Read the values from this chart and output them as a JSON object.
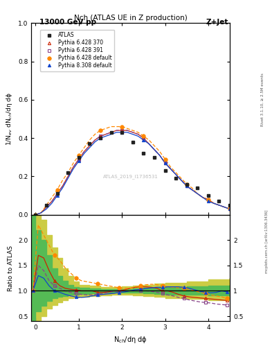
{
  "title": "Nch (ATLAS UE in Z production)",
  "header_left": "13000 GeV pp",
  "header_right": "Z+Jet",
  "watermark": "ATLAS_2019_I1736531",
  "rivet_text": "Rivet 3.1.10, ≥ 2.5M events",
  "mcplots_text": "mcplots.cern.ch [arXiv:1306.3436]",
  "ylabel_main": "1/N$_{ev}$ dN$_{ch}$/dη dϕ",
  "ylabel_ratio": "Ratio to ATLAS",
  "xlabel": "N$_{ch}$/dη dϕ",
  "xlim": [
    -0.1,
    4.5
  ],
  "ylim_main": [
    0.0,
    1.0
  ],
  "ylim_ratio": [
    0.4,
    2.5
  ],
  "atlas_x": [
    0.0,
    0.25,
    0.5,
    0.75,
    1.0,
    1.25,
    1.5,
    1.75,
    2.0,
    2.25,
    2.5,
    2.75,
    3.0,
    3.25,
    3.5,
    3.75,
    4.0,
    4.25,
    4.5
  ],
  "atlas_y": [
    0.0,
    0.05,
    0.11,
    0.22,
    0.3,
    0.37,
    0.4,
    0.43,
    0.43,
    0.38,
    0.32,
    0.3,
    0.23,
    0.19,
    0.16,
    0.14,
    0.1,
    0.07,
    0.05
  ],
  "py6_370_x": [
    0.0,
    0.125,
    0.25,
    0.375,
    0.5,
    0.625,
    0.75,
    0.875,
    1.0,
    1.125,
    1.25,
    1.375,
    1.5,
    1.625,
    1.75,
    1.875,
    2.0,
    2.125,
    2.25,
    2.375,
    2.5,
    2.625,
    2.75,
    2.875,
    3.0,
    3.125,
    3.25,
    3.375,
    3.5,
    3.625,
    3.75,
    3.875,
    4.0,
    4.125,
    4.25,
    4.375,
    4.5
  ],
  "py6_370_y": [
    0.0,
    0.01,
    0.04,
    0.07,
    0.11,
    0.15,
    0.2,
    0.25,
    0.29,
    0.33,
    0.36,
    0.39,
    0.41,
    0.42,
    0.43,
    0.44,
    0.44,
    0.44,
    0.43,
    0.42,
    0.4,
    0.37,
    0.34,
    0.31,
    0.27,
    0.24,
    0.21,
    0.18,
    0.15,
    0.13,
    0.11,
    0.09,
    0.08,
    0.06,
    0.05,
    0.04,
    0.03
  ],
  "py6_391_x": [
    0.0,
    0.125,
    0.25,
    0.375,
    0.5,
    0.625,
    0.75,
    0.875,
    1.0,
    1.125,
    1.25,
    1.375,
    1.5,
    1.625,
    1.75,
    1.875,
    2.0,
    2.125,
    2.25,
    2.375,
    2.5,
    2.625,
    2.75,
    2.875,
    3.0,
    3.125,
    3.25,
    3.375,
    3.5,
    3.625,
    3.75,
    3.875,
    4.0,
    4.125,
    4.25,
    4.375,
    4.5
  ],
  "py6_391_y": [
    0.0,
    0.01,
    0.04,
    0.07,
    0.11,
    0.15,
    0.2,
    0.25,
    0.29,
    0.33,
    0.36,
    0.39,
    0.41,
    0.42,
    0.43,
    0.44,
    0.44,
    0.44,
    0.43,
    0.42,
    0.4,
    0.37,
    0.34,
    0.31,
    0.27,
    0.24,
    0.21,
    0.18,
    0.15,
    0.13,
    0.11,
    0.09,
    0.08,
    0.06,
    0.05,
    0.04,
    0.03
  ],
  "py6_def_x": [
    0.0,
    0.125,
    0.25,
    0.375,
    0.5,
    0.625,
    0.75,
    0.875,
    1.0,
    1.125,
    1.25,
    1.375,
    1.5,
    1.625,
    1.75,
    1.875,
    2.0,
    2.125,
    2.25,
    2.375,
    2.5,
    2.625,
    2.75,
    2.875,
    3.0,
    3.125,
    3.25,
    3.375,
    3.5,
    3.625,
    3.75,
    3.875,
    4.0,
    4.125,
    4.25,
    4.375,
    4.5
  ],
  "py6_def_y": [
    0.0,
    0.01,
    0.05,
    0.09,
    0.13,
    0.18,
    0.22,
    0.27,
    0.31,
    0.35,
    0.39,
    0.42,
    0.44,
    0.45,
    0.46,
    0.46,
    0.46,
    0.45,
    0.44,
    0.43,
    0.41,
    0.39,
    0.36,
    0.33,
    0.29,
    0.25,
    0.22,
    0.19,
    0.16,
    0.14,
    0.11,
    0.09,
    0.08,
    0.06,
    0.05,
    0.04,
    0.03
  ],
  "py8_def_x": [
    0.0,
    0.125,
    0.25,
    0.375,
    0.5,
    0.625,
    0.75,
    0.875,
    1.0,
    1.125,
    1.25,
    1.375,
    1.5,
    1.625,
    1.75,
    1.875,
    2.0,
    2.125,
    2.25,
    2.375,
    2.5,
    2.625,
    2.75,
    2.875,
    3.0,
    3.125,
    3.25,
    3.375,
    3.5,
    3.625,
    3.75,
    3.875,
    4.0,
    4.125,
    4.25,
    4.375,
    4.5
  ],
  "py8_def_y": [
    0.0,
    0.01,
    0.03,
    0.06,
    0.1,
    0.14,
    0.19,
    0.24,
    0.28,
    0.32,
    0.35,
    0.38,
    0.4,
    0.41,
    0.42,
    0.43,
    0.43,
    0.43,
    0.42,
    0.41,
    0.39,
    0.37,
    0.34,
    0.31,
    0.27,
    0.24,
    0.21,
    0.18,
    0.15,
    0.13,
    0.11,
    0.09,
    0.07,
    0.06,
    0.05,
    0.04,
    0.03
  ],
  "ratio_x": [
    -0.0625,
    0.0625,
    0.1875,
    0.3125,
    0.4375,
    0.5625,
    0.6875,
    0.8125,
    0.9375,
    1.0625,
    1.1875,
    1.3125,
    1.4375,
    1.5625,
    1.6875,
    1.8125,
    1.9375,
    2.0625,
    2.1875,
    2.3125,
    2.4375,
    2.5625,
    2.6875,
    2.8125,
    2.9375,
    3.0625,
    3.1875,
    3.3125,
    3.4375,
    3.5625,
    3.6875,
    3.8125,
    3.9375,
    4.0625,
    4.1875,
    4.3125,
    4.4375
  ],
  "ratio_py6_370": [
    1.0,
    1.7,
    1.65,
    1.4,
    1.2,
    1.1,
    1.05,
    1.03,
    1.02,
    1.0,
    1.0,
    1.0,
    0.97,
    0.97,
    0.98,
    1.0,
    1.0,
    1.02,
    1.05,
    1.07,
    1.08,
    1.08,
    1.07,
    1.05,
    1.0,
    1.0,
    0.97,
    0.93,
    0.9,
    0.88,
    0.87,
    0.86,
    0.85,
    0.84,
    0.83,
    0.82,
    0.81
  ],
  "ratio_py6_391": [
    1.0,
    1.5,
    1.4,
    1.2,
    1.1,
    1.05,
    1.0,
    0.97,
    0.95,
    0.93,
    0.92,
    0.92,
    0.93,
    0.95,
    0.97,
    0.99,
    1.0,
    1.0,
    1.0,
    1.0,
    1.0,
    1.0,
    0.99,
    0.97,
    0.95,
    0.92,
    0.9,
    0.87,
    0.85,
    0.82,
    0.8,
    0.78,
    0.77,
    0.76,
    0.74,
    0.73,
    0.72
  ],
  "ratio_py6_def": [
    1.0,
    2.3,
    2.1,
    1.9,
    1.7,
    1.6,
    1.45,
    1.35,
    1.25,
    1.2,
    1.18,
    1.16,
    1.14,
    1.12,
    1.1,
    1.08,
    1.06,
    1.05,
    1.05,
    1.08,
    1.1,
    1.12,
    1.13,
    1.12,
    1.1,
    1.08,
    1.07,
    1.06,
    1.05,
    1.03,
    1.0,
    0.97,
    0.95,
    0.92,
    0.9,
    0.88,
    0.85
  ],
  "ratio_py8_def": [
    1.0,
    1.3,
    1.25,
    1.1,
    1.0,
    0.97,
    0.93,
    0.9,
    0.88,
    0.87,
    0.88,
    0.9,
    0.92,
    0.93,
    0.94,
    0.95,
    0.97,
    0.98,
    1.0,
    1.02,
    1.03,
    1.05,
    1.06,
    1.07,
    1.07,
    1.08,
    1.08,
    1.08,
    1.07,
    1.05,
    1.02,
    0.99,
    0.97,
    0.96,
    0.97,
    1.0,
    0.98
  ],
  "band_x_edges": [
    -0.125,
    0.0,
    0.125,
    0.25,
    0.375,
    0.5,
    0.625,
    0.75,
    0.875,
    1.0,
    1.25,
    1.5,
    1.75,
    2.0,
    2.25,
    2.5,
    2.75,
    3.0,
    3.5,
    4.0,
    4.5
  ],
  "green_lo": [
    0.4,
    0.6,
    0.7,
    0.8,
    0.85,
    0.88,
    0.9,
    0.92,
    0.93,
    0.94,
    0.95,
    0.96,
    0.96,
    0.96,
    0.96,
    0.95,
    0.94,
    0.93,
    0.92,
    0.91,
    0.9
  ],
  "green_hi": [
    2.5,
    2.2,
    2.0,
    1.7,
    1.45,
    1.3,
    1.2,
    1.12,
    1.08,
    1.06,
    1.05,
    1.04,
    1.04,
    1.04,
    1.05,
    1.06,
    1.07,
    1.08,
    1.09,
    1.1,
    1.11
  ],
  "yellow_lo": [
    0.2,
    0.35,
    0.5,
    0.65,
    0.72,
    0.78,
    0.82,
    0.85,
    0.87,
    0.88,
    0.9,
    0.91,
    0.92,
    0.92,
    0.91,
    0.9,
    0.88,
    0.86,
    0.84,
    0.82,
    0.8
  ],
  "yellow_hi": [
    2.5,
    2.5,
    2.4,
    2.1,
    1.85,
    1.65,
    1.45,
    1.3,
    1.18,
    1.12,
    1.1,
    1.08,
    1.08,
    1.09,
    1.1,
    1.12,
    1.14,
    1.16,
    1.18,
    1.22,
    1.25
  ],
  "color_atlas": "#222222",
  "color_py6_370": "#cc2200",
  "color_py6_391": "#884488",
  "color_py6_def": "#ff8800",
  "color_py8_def": "#1144cc",
  "green_color": "#55bb55",
  "yellow_color": "#cccc44"
}
